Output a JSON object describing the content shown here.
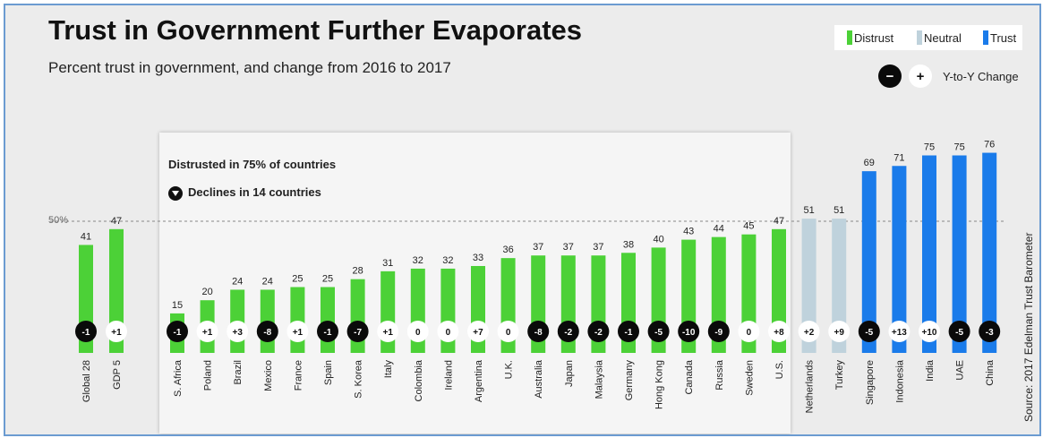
{
  "title": "Trust in Government Further Evaporates",
  "subtitle": "Percent trust in government, and change from 2016 to 2017",
  "legend": {
    "distrust": "Distrust",
    "neutral": "Neutral",
    "trust": "Trust"
  },
  "yty": {
    "minus": "−",
    "plus": "+",
    "label": "Y-to-Y Change"
  },
  "callout": {
    "line1": "Distrusted in 75% of countries",
    "line2": "Declines in 14 countries"
  },
  "colors": {
    "distrust": "#4cd137",
    "neutral": "#bfd2dc",
    "trust": "#1a7bea",
    "neg_badge": "#0a0a0a",
    "pos_badge": "#ffffff"
  },
  "source": "Source: 2017 Edelman Trust Barometer",
  "chart_data": {
    "type": "bar",
    "title": "Trust in Government Further Evaporates",
    "ylabel": "Percent trust in government",
    "ylim": [
      0,
      100
    ],
    "reference_line": {
      "value": 50,
      "label": "50%"
    },
    "categories": [
      "Global 28",
      "GDP 5",
      "S. Africa",
      "Poland",
      "Brazil",
      "Mexico",
      "France",
      "Spain",
      "S. Korea",
      "Italy",
      "Colombia",
      "Ireland",
      "Argentina",
      "U.K.",
      "Australia",
      "Japan",
      "Malaysia",
      "Germany",
      "Hong Kong",
      "Canada",
      "Russia",
      "Sweden",
      "U.S.",
      "Netherlands",
      "Turkey",
      "Singapore",
      "Indonesia",
      "India",
      "UAE",
      "China"
    ],
    "values": [
      41,
      47,
      15,
      20,
      24,
      24,
      25,
      25,
      28,
      31,
      32,
      32,
      33,
      36,
      37,
      37,
      37,
      38,
      40,
      43,
      44,
      45,
      47,
      51,
      51,
      69,
      71,
      75,
      75,
      76
    ],
    "changes": [
      "-1",
      "+1",
      "-1",
      "+1",
      "+3",
      "-8",
      "+1",
      "-1",
      "-7",
      "+1",
      "0",
      "0",
      "+7",
      "0",
      "-8",
      "-2",
      "-2",
      "-1",
      "-5",
      "-10",
      "-9",
      "0",
      "+8",
      "+2",
      "+9",
      "-5",
      "+13",
      "+10",
      "-5",
      "-3"
    ],
    "categories_type": [
      "distrust",
      "distrust",
      "distrust",
      "distrust",
      "distrust",
      "distrust",
      "distrust",
      "distrust",
      "distrust",
      "distrust",
      "distrust",
      "distrust",
      "distrust",
      "distrust",
      "distrust",
      "distrust",
      "distrust",
      "distrust",
      "distrust",
      "distrust",
      "distrust",
      "distrust",
      "distrust",
      "neutral",
      "neutral",
      "trust",
      "trust",
      "trust",
      "trust",
      "trust"
    ]
  }
}
